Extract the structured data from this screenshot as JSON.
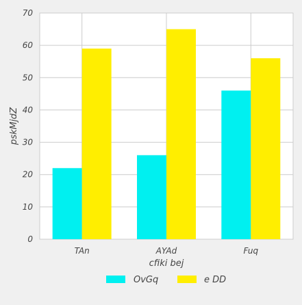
{
  "chart_data": {
    "type": "bar",
    "title": "",
    "xlabel": "cfiki bej",
    "ylabel": "pskMjdZ",
    "categories": [
      "TAn",
      "AYAd",
      "Fuq"
    ],
    "series": [
      {
        "name": "OvGq",
        "values": [
          22,
          26,
          46
        ],
        "color": "#00f0f0"
      },
      {
        "name": "e DD",
        "values": [
          59,
          65,
          56
        ],
        "color": "#ffee00"
      }
    ],
    "ylim": [
      0,
      70
    ],
    "yticks": [
      0,
      10,
      20,
      30,
      40,
      50,
      60,
      70
    ],
    "grid": true,
    "legend_position": "bottom-center"
  }
}
